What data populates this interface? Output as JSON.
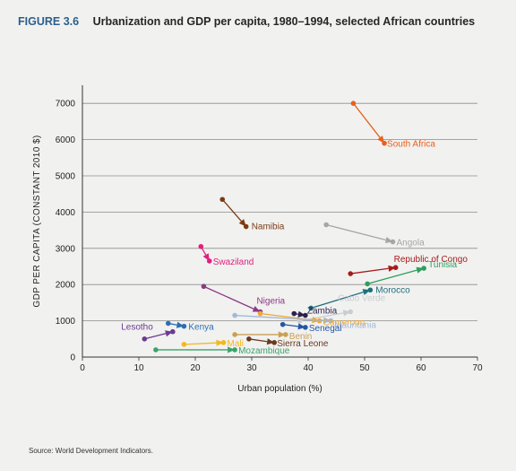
{
  "figure": {
    "label": "FIGURE 3.6",
    "title": "Urbanization and GDP per capita, 1980–1994, selected African countries"
  },
  "source": "Source: World Development Indicators.",
  "chart_data": {
    "type": "scatter",
    "subtype": "arrow-connected",
    "xlabel": "Urban population (%)",
    "ylabel": "GDP PER CAPITA (CONSTANT 2010 $)",
    "xlim": [
      0,
      70
    ],
    "ylim": [
      0,
      7500
    ],
    "xticks": [
      0,
      10,
      20,
      30,
      40,
      50,
      60,
      70
    ],
    "yticks": [
      0,
      1000,
      2000,
      3000,
      4000,
      5000,
      6000,
      7000
    ],
    "grid": "horizontal",
    "series": [
      {
        "name": "South Africa",
        "color": "#e8601c",
        "from": [
          48,
          7000
        ],
        "to": [
          53.5,
          5900
        ]
      },
      {
        "name": "Namibia",
        "color": "#7a3b12",
        "from": [
          24.8,
          4350
        ],
        "to": [
          29,
          3600
        ]
      },
      {
        "name": "Angola",
        "color": "#a6a6a6",
        "from": [
          43.2,
          3650
        ],
        "to": [
          55,
          3180
        ]
      },
      {
        "name": "Swaziland",
        "color": "#e0207d",
        "from": [
          21,
          3050
        ],
        "to": [
          22.5,
          2650
        ]
      },
      {
        "name": "Republic of Congo",
        "color": "#a51c1c",
        "from": [
          47.5,
          2300
        ],
        "to": [
          55.5,
          2470
        ]
      },
      {
        "name": "Tunisia",
        "color": "#2e9e5b",
        "from": [
          50.5,
          2020
        ],
        "to": [
          60.5,
          2450
        ]
      },
      {
        "name": "Morocco",
        "color": "#1f6e7a",
        "from": [
          40.5,
          1350
        ],
        "to": [
          51,
          1850
        ]
      },
      {
        "name": "Nigeria",
        "color": "#8a3b82",
        "from": [
          21.5,
          1950
        ],
        "to": [
          31.5,
          1250
        ]
      },
      {
        "name": "Cabo Verde",
        "color": "#c9cdd2",
        "from": [
          38.5,
          1000
        ],
        "to": [
          47.5,
          1250
        ]
      },
      {
        "name": "Zambia",
        "color": "#2d1f4d",
        "from": [
          37.5,
          1200
        ],
        "to": [
          39.5,
          1150
        ]
      },
      {
        "name": "Cameroon",
        "color": "#f0a830",
        "from": [
          31.5,
          1200
        ],
        "to": [
          42,
          1000
        ]
      },
      {
        "name": "Mauritania",
        "color": "#9fb9d9",
        "from": [
          27,
          1150
        ],
        "to": [
          44,
          1000
        ]
      },
      {
        "name": "Senegal",
        "color": "#2456a3",
        "from": [
          35.5,
          900
        ],
        "to": [
          39.5,
          820
        ]
      },
      {
        "name": "Kenya",
        "color": "#2a6fb5",
        "from": [
          15.2,
          930
        ],
        "to": [
          18,
          850
        ]
      },
      {
        "name": "Lesotho",
        "color": "#6b3a8f",
        "from": [
          11,
          500
        ],
        "to": [
          16,
          700
        ]
      },
      {
        "name": "Benin",
        "color": "#c9a052",
        "from": [
          27,
          620
        ],
        "to": [
          36,
          620
        ]
      },
      {
        "name": "Mali",
        "color": "#f2b81c",
        "from": [
          18,
          350
        ],
        "to": [
          25,
          400
        ]
      },
      {
        "name": "Sierra Leone",
        "color": "#6b3a1f",
        "from": [
          29.5,
          500
        ],
        "to": [
          34,
          400
        ]
      },
      {
        "name": "Mozambique",
        "color": "#3aa36a",
        "from": [
          13,
          200
        ],
        "to": [
          27,
          200
        ]
      }
    ]
  }
}
